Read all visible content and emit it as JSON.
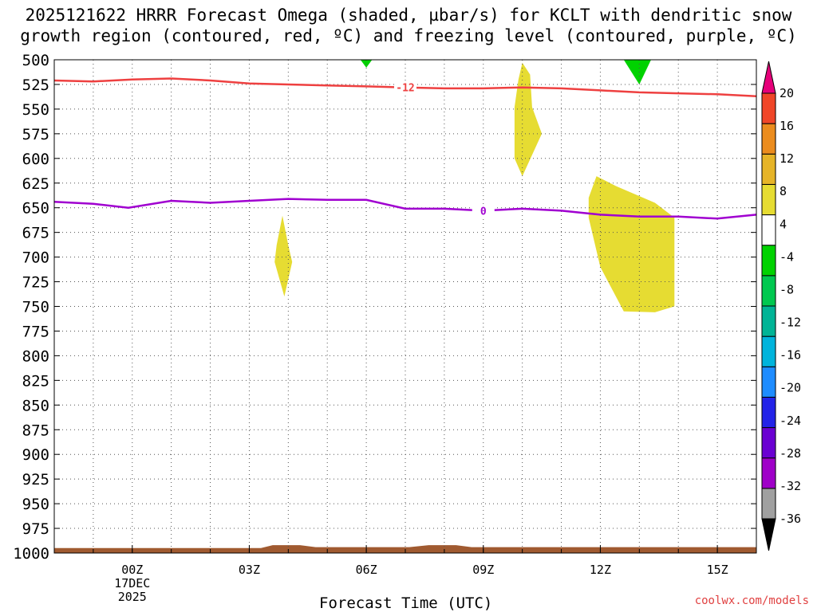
{
  "chart_data": {
    "type": "contour",
    "title_line1": "2025121622 HRRR Forecast Omega (shaded, µbar/s) for KCLT with dendritic snow",
    "title_line2": "growth region (contoured, red, ºC) and freezing level (contoured, purple, ºC)",
    "xlabel": "Forecast Time (UTC)",
    "credit": "coolwx.com/models",
    "x_range_hours": [
      -2.0,
      16.0
    ],
    "x_ticks": [
      {
        "hour": 0,
        "label": "00Z",
        "sub1": "17DEC",
        "sub2": "2025"
      },
      {
        "hour": 3,
        "label": "03Z"
      },
      {
        "hour": 6,
        "label": "06Z"
      },
      {
        "hour": 9,
        "label": "09Z"
      },
      {
        "hour": 12,
        "label": "12Z"
      },
      {
        "hour": 15,
        "label": "15Z"
      }
    ],
    "y_range_hpa": [
      500,
      1000
    ],
    "y_ticks": [
      500,
      525,
      550,
      575,
      600,
      625,
      650,
      675,
      700,
      725,
      750,
      775,
      800,
      825,
      850,
      875,
      900,
      925,
      950,
      975,
      1000
    ],
    "colorbar": {
      "segments": [
        {
          "color": "#a0a0a0"
        },
        {
          "color": "#9f00c8"
        },
        {
          "color": "#6a00d2"
        },
        {
          "color": "#2323e8"
        },
        {
          "color": "#1e8cff"
        },
        {
          "color": "#00b4dc"
        },
        {
          "color": "#00b496"
        },
        {
          "color": "#00c850"
        },
        {
          "color": "#00d200"
        },
        {
          "color": "#ffffff"
        },
        {
          "color": "#e6dc32"
        },
        {
          "color": "#e6b428"
        },
        {
          "color": "#eb8c1e"
        },
        {
          "color": "#f04628"
        }
      ],
      "top_arrow_color": "#e6007a",
      "bottom_arrow_color": "#000000",
      "labels": [
        "20",
        "16",
        "12",
        "8",
        "4",
        "-4",
        "-8",
        "-12",
        "-16",
        "-20",
        "-24",
        "-28",
        "-32",
        "-36"
      ]
    },
    "series": [
      {
        "name": "-12C isotherm",
        "label": "-12",
        "color": "#ee4040",
        "label_hour": 7.0,
        "points": [
          [
            -2,
            521
          ],
          [
            -1,
            522
          ],
          [
            0,
            520
          ],
          [
            1,
            519
          ],
          [
            2,
            521
          ],
          [
            3,
            524
          ],
          [
            4,
            525
          ],
          [
            5,
            526
          ],
          [
            6,
            527
          ],
          [
            7,
            528
          ],
          [
            8,
            529
          ],
          [
            9,
            529
          ],
          [
            10,
            528
          ],
          [
            11,
            529
          ],
          [
            12,
            531
          ],
          [
            13,
            533
          ],
          [
            14,
            534
          ],
          [
            15,
            535
          ],
          [
            16,
            537
          ]
        ]
      },
      {
        "name": "0C freezing level",
        "label": "0",
        "color": "#a000d0",
        "label_hour": 9.0,
        "points": [
          [
            -2,
            644
          ],
          [
            -1,
            646
          ],
          [
            -0.1,
            650
          ],
          [
            1,
            643
          ],
          [
            2,
            645
          ],
          [
            3,
            643
          ],
          [
            4,
            641
          ],
          [
            5,
            642
          ],
          [
            6,
            642
          ],
          [
            7,
            651
          ],
          [
            8,
            651
          ],
          [
            9,
            653
          ],
          [
            10,
            651
          ],
          [
            11,
            653
          ],
          [
            12,
            657
          ],
          [
            13,
            659
          ],
          [
            14,
            659
          ],
          [
            15,
            661
          ],
          [
            16,
            657
          ]
        ]
      }
    ],
    "shaded_regions": [
      {
        "value": "4-8",
        "color": "#e6dc32",
        "points": [
          [
            10.0,
            503
          ],
          [
            10.2,
            515
          ],
          [
            10.25,
            548
          ],
          [
            10.5,
            575
          ],
          [
            10.0,
            618
          ],
          [
            9.8,
            600
          ],
          [
            9.8,
            548
          ],
          [
            9.9,
            520
          ]
        ]
      },
      {
        "value": "4-8",
        "color": "#e6dc32",
        "points": [
          [
            3.85,
            658
          ],
          [
            4.0,
            688
          ],
          [
            4.1,
            705
          ],
          [
            3.9,
            740
          ],
          [
            3.65,
            705
          ],
          [
            3.7,
            688
          ]
        ]
      },
      {
        "value": "4-8",
        "color": "#e6dc32",
        "points": [
          [
            11.9,
            618
          ],
          [
            12.4,
            628
          ],
          [
            13.4,
            645
          ],
          [
            13.9,
            660
          ],
          [
            13.9,
            750
          ],
          [
            13.4,
            756
          ],
          [
            12.6,
            755
          ],
          [
            12.0,
            710
          ],
          [
            11.7,
            660
          ],
          [
            11.7,
            640
          ]
        ]
      },
      {
        "value": "-8 to -4",
        "color": "#00d200",
        "points": [
          [
            5.85,
            500
          ],
          [
            6.15,
            500
          ],
          [
            6.0,
            508
          ]
        ]
      },
      {
        "value": "-8 to -4",
        "color": "#00d200",
        "points": [
          [
            12.6,
            500
          ],
          [
            13.3,
            500
          ],
          [
            13.0,
            525
          ]
        ]
      },
      {
        "value": "surface",
        "color": "#a05a30",
        "points": [
          [
            -2,
            995
          ],
          [
            3.3,
            995
          ],
          [
            3.6,
            992
          ],
          [
            4.3,
            992
          ],
          [
            4.7,
            994
          ],
          [
            7.1,
            994
          ],
          [
            7.6,
            992
          ],
          [
            8.3,
            992
          ],
          [
            8.7,
            994
          ],
          [
            16,
            994
          ],
          [
            16,
            1000
          ],
          [
            -2,
            1000
          ]
        ]
      }
    ]
  }
}
